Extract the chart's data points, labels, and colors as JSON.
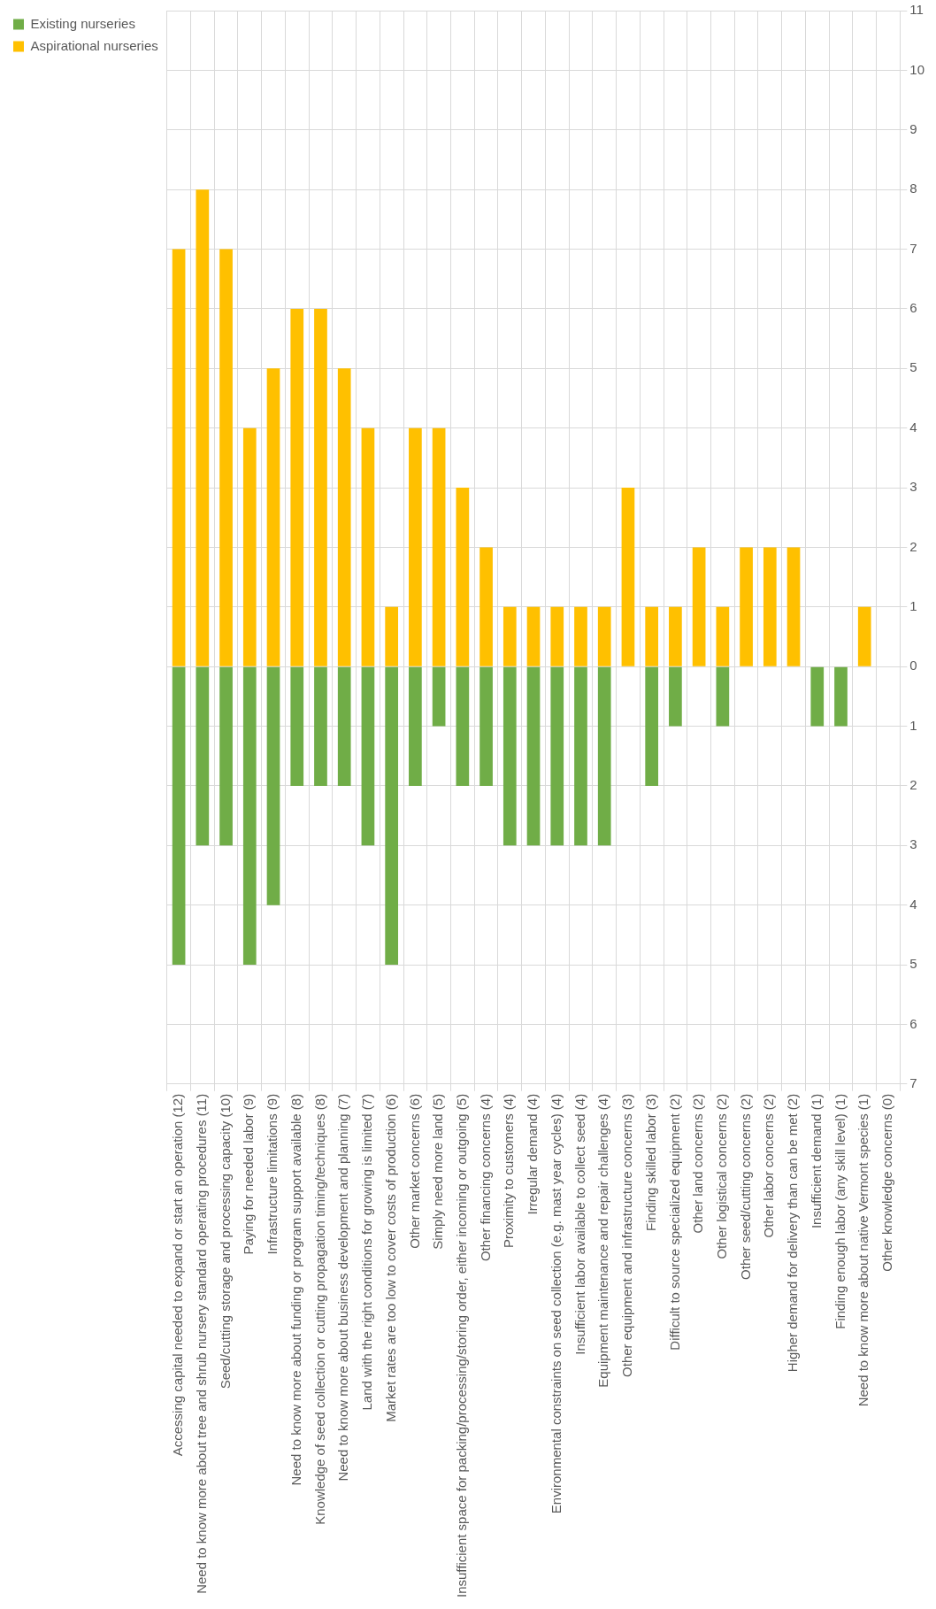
{
  "chart_data": {
    "type": "bar",
    "stacked": true,
    "grid": true,
    "legend": "left",
    "categories": [
      "Accessing capital needed to expand or start an operation (12)",
      "Need to know more about tree and shrub nursery standard operating procedures (11)",
      "Seed/cutting storage and processing capacity (10)",
      "Paying for needed labor (9)",
      "Infrastructure limitations (9)",
      "Need to know more about funding or program support available (8)",
      "Knowledge of seed collection or cutting propagation timing/techniques (8)",
      "Need to know more about business development and planning (7)",
      "Land with the right conditions for growing is limited (7)",
      "Market rates are too low to cover costs of production (6)",
      "Other market concerns (6)",
      "Simply need more land (5)",
      "Insufficient space for packing/processing/storing order, either incoming or outgoing (5)",
      "Other financing concerns (4)",
      "Proximity to customers (4)",
      "Irregular demand (4)",
      "Environmental constraints on seed collection (e.g. mast year cycles) (4)",
      "Insufficient labor available to collect seed (4)",
      "Equipment maintenance and repair challenges (4)",
      "Other equipment and infrastructure concerns (3)",
      "Finding skilled labor (3)",
      "Difficult to source specialized equipment (2)",
      "Other land concerns (2)",
      "Other logistical concerns (2)",
      "Other seed/cutting concerns (2)",
      "Other labor concerns (2)",
      "Higher demand for delivery than can be met (2)",
      "Insufficient demand (1)",
      "Finding enough labor (any skill level) (1)",
      "Need to know more about native Vermont species (1)",
      "Other knowledge concerns (0)"
    ],
    "series": [
      {
        "name": "Existing nurseries",
        "color": "#70ad47",
        "values": [
          -5,
          -3,
          -3,
          -5,
          -4,
          -2,
          -2,
          -2,
          -3,
          -5,
          -2,
          -1,
          -2,
          -2,
          -3,
          -3,
          -3,
          -3,
          -3,
          0,
          -2,
          -1,
          0,
          -1,
          0,
          0,
          0,
          -1,
          -1,
          0,
          0
        ]
      },
      {
        "name": "Aspirational nurseries",
        "color": "#ffc000",
        "values": [
          7,
          8,
          7,
          4,
          5,
          6,
          6,
          5,
          4,
          1,
          4,
          4,
          3,
          2,
          1,
          1,
          1,
          1,
          1,
          3,
          1,
          1,
          2,
          1,
          2,
          2,
          2,
          0,
          0,
          1,
          0
        ]
      }
    ],
    "ylim": [
      -7,
      11
    ],
    "yticks": [
      {
        "value": -7,
        "label": "7"
      },
      {
        "value": -6,
        "label": "6"
      },
      {
        "value": -5,
        "label": "5"
      },
      {
        "value": -4,
        "label": "4"
      },
      {
        "value": -3,
        "label": "3"
      },
      {
        "value": -2,
        "label": "2"
      },
      {
        "value": -1,
        "label": "1"
      },
      0,
      1,
      2,
      3,
      4,
      5,
      6,
      7,
      8,
      9,
      10,
      11
    ]
  }
}
